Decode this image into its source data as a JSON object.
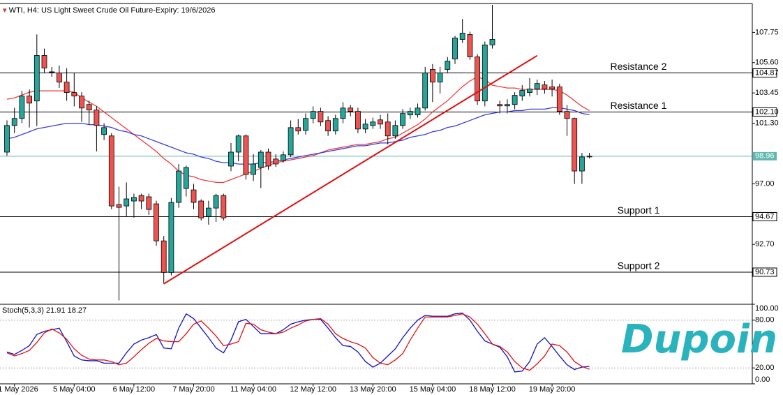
{
  "chart_data": [
    {
      "type": "candlestick",
      "title": "WTI, H4:  US Light Sweet Crude Oil Future-Expiry: 19/6/2026",
      "categories": [
        null,
        "1 May 2026",
        null,
        null,
        null,
        null,
        null,
        null,
        null,
        "5 May 04:00",
        null,
        null,
        null,
        null,
        null,
        null,
        null,
        "6 May 12:00",
        null,
        null,
        null,
        null,
        null,
        null,
        null,
        "7 May 20:00",
        null,
        null,
        null,
        null,
        null,
        null,
        null,
        "11 May 04:00",
        null,
        null,
        null,
        null,
        null,
        null,
        null,
        "12 May 12:00",
        null,
        null,
        null,
        null,
        null,
        null,
        null,
        "13 May 20:00",
        null,
        null,
        null,
        null,
        null,
        null,
        null,
        "15 May 04:00",
        null,
        null,
        null,
        null,
        null,
        null,
        null,
        "18 May 12:00",
        null,
        null,
        null,
        null,
        null,
        null,
        null,
        "19 May 20:00",
        null,
        null,
        null,
        null,
        null
      ],
      "open": [
        99.25,
        101.14,
        101.64,
        103.23,
        102.88,
        106.11,
        104.95,
        104.87,
        104.22,
        103.48,
        103.23,
        102.63,
        102.24,
        100.5,
        100.4,
        95.53,
        95.43,
        95.78,
        96.17,
        96.08,
        95.58,
        92.95,
        90.71,
        95.68,
        96.67,
        96.57,
        95.78,
        94.68,
        95.28,
        96.17,
        98.26,
        99.25,
        100.4,
        97.67,
        98.16,
        99.25,
        98.76,
        98.66,
        99.06,
        100.99,
        100.79,
        101.64,
        102.14,
        101.49,
        100.75,
        101.64,
        102.38,
        102.14,
        100.89,
        101.14,
        101.54,
        101.39,
        100.4,
        101.14,
        101.89,
        101.89,
        102.38,
        105.12,
        104.22,
        105.12,
        105.86,
        107.25,
        107.6,
        106.01,
        102.88,
        106.86,
        102.63,
        102.53,
        102.63,
        103.23,
        103.48,
        103.73,
        104.02,
        103.88,
        103.88,
        102.14,
        101.64,
        97.91,
        98.91
      ],
      "high": [
        101.5,
        102.4,
        103.6,
        103.7,
        107.6,
        106.6,
        105.3,
        105.4,
        105.2,
        104.9,
        103.5,
        102.9,
        102.5,
        101.3,
        100.6,
        96.8,
        97.1,
        96.3,
        96.3,
        96.3,
        95.8,
        93.3,
        96.0,
        98.4,
        98.3,
        97.0,
        95.9,
        95.8,
        96.3,
        96.3,
        99.9,
        100.5,
        100.5,
        99.1,
        99.4,
        99.5,
        99.1,
        99.3,
        101.5,
        101.6,
        102.0,
        102.5,
        102.4,
        101.8,
        101.9,
        102.8,
        102.6,
        102.4,
        101.6,
        101.7,
        101.9,
        102.0,
        101.5,
        102.3,
        102.4,
        102.7,
        105.3,
        105.5,
        105.3,
        106.0,
        107.5,
        108.7,
        107.8,
        106.2,
        107.1,
        109.7,
        102.9,
        103.0,
        103.5,
        104.0,
        104.5,
        104.4,
        104.3,
        104.4,
        104.1,
        102.6,
        101.7,
        99.2,
        99.2
      ],
      "low": [
        99.0,
        100.6,
        101.3,
        101.0,
        101.1,
        104.9,
        104.6,
        103.8,
        102.9,
        102.5,
        101.4,
        101.2,
        99.3,
        100.1,
        95.2,
        88.72,
        94.7,
        94.6,
        95.2,
        94.8,
        92.6,
        89.91,
        90.5,
        95.3,
        96.1,
        95.2,
        94.4,
        94.1,
        94.3,
        94.4,
        97.9,
        98.6,
        97.3,
        97.2,
        96.7,
        98.0,
        98.2,
        98.5,
        98.9,
        100.5,
        100.5,
        101.3,
        101.1,
        100.4,
        100.5,
        101.3,
        101.8,
        100.6,
        100.6,
        100.9,
        100.9,
        99.8,
        100.2,
        100.9,
        101.6,
        101.7,
        102.2,
        102.8,
        103.4,
        104.9,
        105.5,
        107.0,
        105.8,
        102.6,
        102.5,
        106.6,
        102.0,
        102.0,
        102.3,
        102.9,
        103.2,
        103.3,
        103.4,
        103.2,
        101.9,
        100.4,
        97.0,
        97.0,
        98.8
      ],
      "close": [
        101.14,
        101.64,
        103.23,
        102.73,
        106.11,
        105.22,
        104.9,
        104.22,
        103.48,
        103.23,
        102.38,
        102.24,
        101.14,
        100.99,
        95.43,
        95.33,
        95.93,
        96.03,
        95.78,
        95.18,
        92.95,
        90.71,
        95.68,
        97.91,
        98.16,
        95.68,
        94.58,
        95.28,
        96.17,
        94.58,
        99.25,
        100.4,
        97.67,
        98.41,
        99.25,
        98.26,
        98.41,
        99.06,
        100.99,
        100.75,
        101.64,
        102.14,
        101.39,
        100.75,
        101.64,
        102.38,
        102.14,
        100.89,
        101.24,
        101.39,
        101.24,
        100.4,
        101.14,
        101.99,
        102.14,
        102.38,
        104.87,
        104.22,
        104.87,
        105.71,
        107.35,
        107.7,
        106.01,
        102.88,
        106.86,
        107.25,
        102.53,
        102.63,
        103.28,
        103.63,
        103.73,
        104.12,
        103.73,
        103.73,
        102.14,
        101.64,
        97.91,
        98.91,
        98.96
      ],
      "up_color": "#26a69a",
      "down_color": "#ef5350",
      "series": [
        {
          "color": "#f03c3c",
          "values": [
            103.0,
            103.1,
            103.3,
            103.5,
            103.6,
            103.6,
            103.6,
            103.6,
            103.6,
            103.5,
            103.1,
            102.8,
            102.5,
            102.1,
            101.7,
            101.3,
            100.9,
            100.5,
            100.1,
            99.7,
            99.3,
            98.8,
            98.4,
            97.9,
            97.6,
            97.5,
            97.3,
            97.2,
            97.1,
            97.1,
            97.3,
            97.5,
            97.7,
            97.9,
            98.1,
            98.3,
            98.5,
            98.6,
            98.7,
            98.8,
            98.9,
            99.0,
            99.2,
            99.4,
            99.5,
            99.6,
            99.7,
            99.8,
            99.8,
            99.9,
            100.0,
            100.2,
            100.3,
            100.6,
            100.9,
            101.2,
            101.6,
            102.1,
            102.5,
            102.9,
            103.4,
            103.9,
            104.3,
            104.6,
            104.4,
            104.0,
            103.9,
            103.8,
            103.8,
            103.7,
            103.7,
            103.7,
            103.7,
            103.7,
            103.6,
            103.3,
            102.9,
            102.5,
            102.2
          ]
        },
        {
          "color": "#3c3cdc",
          "values": [
            100.2,
            100.3,
            100.5,
            100.7,
            100.9,
            101.0,
            101.1,
            101.2,
            101.3,
            101.3,
            101.3,
            101.2,
            101.2,
            101.1,
            101.0,
            100.8,
            100.7,
            100.5,
            100.4,
            100.2,
            100.0,
            99.8,
            99.6,
            99.4,
            99.2,
            99.1,
            98.9,
            98.8,
            98.6,
            98.5,
            98.5,
            98.4,
            98.4,
            98.4,
            98.5,
            98.5,
            98.6,
            98.7,
            98.8,
            98.9,
            99.0,
            99.1,
            99.2,
            99.3,
            99.4,
            99.5,
            99.6,
            99.7,
            99.7,
            99.8,
            99.9,
            99.9,
            100.0,
            100.1,
            100.3,
            100.4,
            100.5,
            100.7,
            100.8,
            101.0,
            101.1,
            101.3,
            101.5,
            101.7,
            101.9,
            102.0,
            102.1,
            102.1,
            102.2,
            102.2,
            102.3,
            102.3,
            102.3,
            102.4,
            102.4,
            102.3,
            102.2,
            102.0,
            101.9
          ]
        }
      ],
      "ylim": [
        88.5,
        109.8
      ],
      "yticks": [
        {
          "value": 107.75,
          "label": "107.75"
        },
        {
          "value": 105.6,
          "label": "105.60"
        },
        {
          "value": 103.45,
          "label": "103.45"
        },
        {
          "value": 101.3,
          "label": "101.30"
        },
        {
          "value": 97.0,
          "label": "97.00"
        },
        {
          "value": 92.7,
          "label": "92.70"
        }
      ],
      "levels": [
        {
          "name": "Resistance 2",
          "value": 104.87,
          "label": "104.87"
        },
        {
          "name": "Resistance 1",
          "value": 102.1,
          "label": "102.10"
        },
        {
          "name": "Support 1",
          "value": 94.67,
          "label": "94.67"
        },
        {
          "name": "Support 2",
          "value": 90.73,
          "label": "90.73"
        }
      ],
      "last_price": {
        "value": 98.96,
        "label": "98.96",
        "color": "#5fb8b0"
      },
      "trendline": {
        "color": "#e01010",
        "values": [
          89.9,
          106.1
        ]
      },
      "logo": "Dupoin"
    },
    {
      "type": "line",
      "title": "Stoch(5,3,3)",
      "series": [
        {
          "color": "#1010c8",
          "values": [
            40,
            37,
            42,
            48,
            62,
            66,
            68,
            70,
            53,
            35,
            30,
            29,
            29,
            26,
            26,
            26,
            39,
            50,
            55,
            58,
            62,
            45,
            44,
            70,
            88,
            82,
            70,
            58,
            45,
            39,
            55,
            78,
            81,
            72,
            63,
            63,
            63,
            68,
            75,
            78,
            80,
            81,
            81,
            70,
            58,
            48,
            47,
            40,
            28,
            21,
            26,
            35,
            44,
            58,
            70,
            80,
            86,
            85,
            85,
            85,
            88,
            89,
            80,
            66,
            54,
            50,
            46,
            34,
            15,
            16,
            28,
            50,
            58,
            47,
            35,
            24,
            18,
            21,
            21.91
          ]
        },
        {
          "color": "#e01010",
          "values": [
            39,
            35,
            38,
            42,
            52,
            64,
            69,
            64,
            56,
            44,
            36,
            31,
            30,
            30,
            28,
            24,
            26,
            34,
            43,
            51,
            57,
            54,
            53,
            53,
            63,
            75,
            79,
            70,
            60,
            48,
            50,
            53,
            76,
            75,
            68,
            65,
            63,
            65,
            70,
            74,
            79,
            81,
            82,
            75,
            63,
            57,
            53,
            50,
            45,
            33,
            26,
            24,
            30,
            38,
            55,
            70,
            84,
            84,
            84,
            84,
            86,
            88,
            84,
            75,
            63,
            50,
            47,
            40,
            28,
            20,
            17,
            25,
            35,
            50,
            48,
            40,
            28,
            22,
            18.27
          ]
        }
      ],
      "ylim": [
        0,
        100
      ],
      "yticks": [
        {
          "value": 100,
          "label": "100.00"
        },
        {
          "value": 80,
          "label": "80.00"
        },
        {
          "value": 20,
          "label": "20.00"
        },
        {
          "value": 0,
          "label": "0.00"
        }
      ]
    }
  ]
}
